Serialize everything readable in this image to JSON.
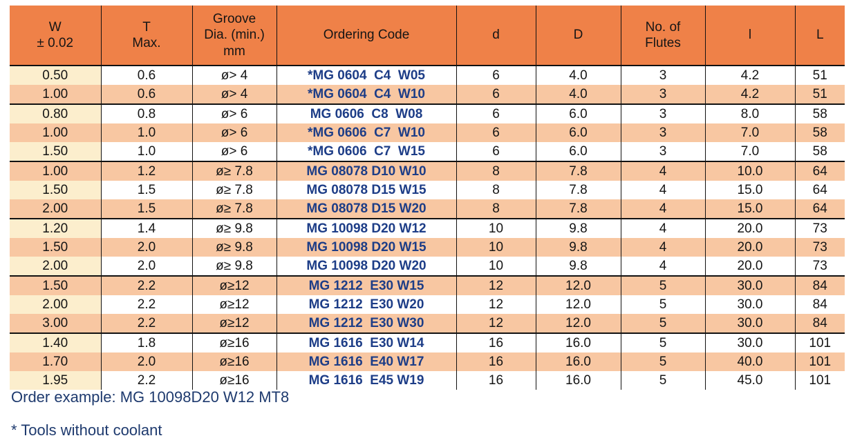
{
  "table": {
    "columns": [
      {
        "key": "w",
        "label": "W\n± 0.02"
      },
      {
        "key": "t",
        "label": "T\nMax."
      },
      {
        "key": "groove",
        "label": "Groove\nDia. (min.)\nmm"
      },
      {
        "key": "code",
        "label": "Ordering Code"
      },
      {
        "key": "d",
        "label": "d"
      },
      {
        "key": "D",
        "label": "D"
      },
      {
        "key": "flutes",
        "label": "No. of\nFlutes"
      },
      {
        "key": "l",
        "label": "l"
      },
      {
        "key": "L",
        "label": "L"
      }
    ],
    "groups": [
      {
        "rows": [
          [
            "0.50",
            "0.6",
            "ø> 4",
            "*MG 0604  C4  W05",
            "6",
            "4.0",
            "3",
            "4.2",
            "51"
          ],
          [
            "1.00",
            "0.6",
            "ø> 4",
            "*MG 0604  C4  W10",
            "6",
            "4.0",
            "3",
            "4.2",
            "51"
          ]
        ]
      },
      {
        "rows": [
          [
            "0.80",
            "0.8",
            "ø> 6",
            "MG 0606  C8  W08",
            "6",
            "6.0",
            "3",
            "8.0",
            "58"
          ],
          [
            "1.00",
            "1.0",
            "ø> 6",
            "*MG 0606  C7  W10",
            "6",
            "6.0",
            "3",
            "7.0",
            "58"
          ],
          [
            "1.50",
            "1.0",
            "ø> 6",
            "*MG 0606  C7  W15",
            "6",
            "6.0",
            "3",
            "7.0",
            "58"
          ]
        ]
      },
      {
        "rows": [
          [
            "1.00",
            "1.2",
            "ø≥ 7.8",
            "MG 08078 D10 W10",
            "8",
            "7.8",
            "4",
            "10.0",
            "64"
          ],
          [
            "1.50",
            "1.5",
            "ø≥ 7.8",
            "MG 08078 D15 W15",
            "8",
            "7.8",
            "4",
            "15.0",
            "64"
          ],
          [
            "2.00",
            "1.5",
            "ø≥ 7.8",
            "MG 08078 D15 W20",
            "8",
            "7.8",
            "4",
            "15.0",
            "64"
          ]
        ]
      },
      {
        "rows": [
          [
            "1.20",
            "1.4",
            "ø≥ 9.8",
            "MG 10098 D20 W12",
            "10",
            "9.8",
            "4",
            "20.0",
            "73"
          ],
          [
            "1.50",
            "2.0",
            "ø≥ 9.8",
            "MG 10098 D20 W15",
            "10",
            "9.8",
            "4",
            "20.0",
            "73"
          ],
          [
            "2.00",
            "2.0",
            "ø≥ 9.8",
            "MG 10098 D20 W20",
            "10",
            "9.8",
            "4",
            "20.0",
            "73"
          ]
        ]
      },
      {
        "rows": [
          [
            "1.50",
            "2.2",
            "ø≥12",
            "MG 1212  E30 W15",
            "12",
            "12.0",
            "5",
            "30.0",
            "84"
          ],
          [
            "2.00",
            "2.2",
            "ø≥12",
            "MG 1212  E30 W20",
            "12",
            "12.0",
            "5",
            "30.0",
            "84"
          ],
          [
            "3.00",
            "2.2",
            "ø≥12",
            "MG 1212  E30 W30",
            "12",
            "12.0",
            "5",
            "30.0",
            "84"
          ]
        ]
      },
      {
        "rows": [
          [
            "1.40",
            "1.8",
            "ø≥16",
            "MG 1616  E30 W14",
            "16",
            "16.0",
            "5",
            "30.0",
            "101"
          ],
          [
            "1.70",
            "2.0",
            "ø≥16",
            "MG 1616  E40 W17",
            "16",
            "16.0",
            "5",
            "40.0",
            "101"
          ],
          [
            "1.95",
            "2.2",
            "ø≥16",
            "MG 1616  E45 W19",
            "16",
            "16.0",
            "5",
            "45.0",
            "101"
          ]
        ]
      }
    ]
  },
  "footer": {
    "order_example": "Order example: MG 10098D20 W12 MT8",
    "note": "* Tools without coolant"
  },
  "colors": {
    "header_bg": "#EF8148",
    "row_shaded": "#F8C7A2",
    "w_cell": "#FCEECD",
    "code_text": "#1D3D87",
    "footer_text": "#1E3A6E"
  }
}
